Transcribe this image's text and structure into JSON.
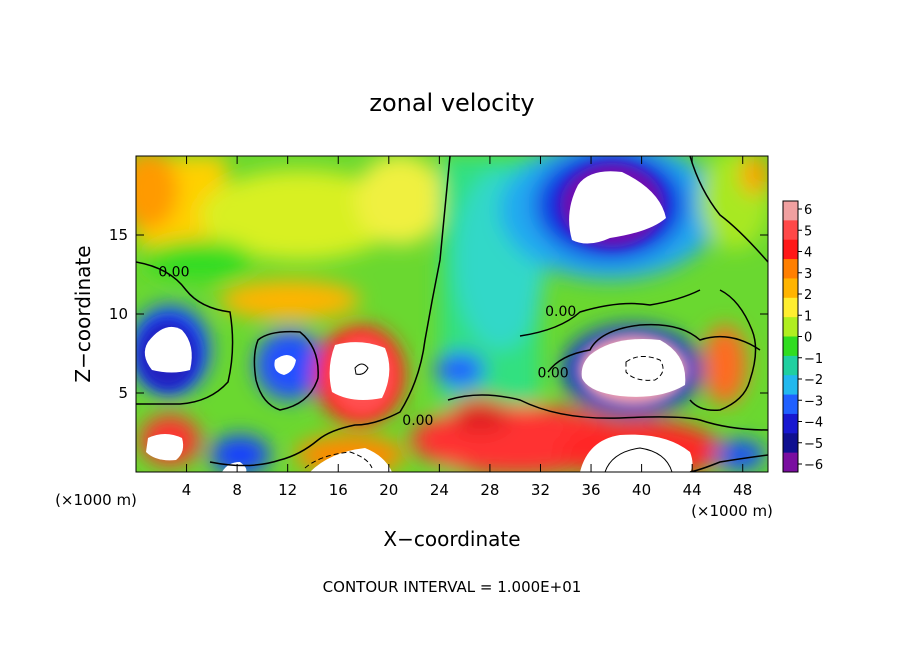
{
  "chart_data": {
    "type": "heatmap",
    "title": "zonal velocity",
    "xlabel": "X−coordinate",
    "ylabel": "Z−coordinate",
    "x_unit_left": "(×1000 m)",
    "x_unit_right": "(×1000 m)",
    "footer": "CONTOUR INTERVAL = 1.000E+01",
    "xlim": [
      0,
      50
    ],
    "ylim": [
      0,
      20
    ],
    "x_ticks": [
      4,
      8,
      12,
      16,
      20,
      24,
      28,
      32,
      36,
      40,
      44,
      48
    ],
    "y_ticks": [
      5,
      10,
      15
    ],
    "colorbar": {
      "ticks": [
        6,
        5,
        4,
        3,
        2,
        1,
        0,
        -1,
        -2,
        -3,
        -4,
        -5,
        -6
      ],
      "tick_labels": [
        "6",
        "5",
        "4",
        "3",
        "2",
        "1",
        "0",
        "−1",
        "−2",
        "−3",
        "−4",
        "−5",
        "−6"
      ],
      "colors": [
        "#f0a0a0",
        "#ff4848",
        "#ff1818",
        "#ff7f00",
        "#ffb400",
        "#ffee30",
        "#b0ee20",
        "#30dd20",
        "#20cfa0",
        "#22b8ee",
        "#2060ff",
        "#1818d0",
        "#101090",
        "#7a0ea0"
      ]
    },
    "contour_labels": [
      {
        "text": "0.00",
        "x": 3,
        "y": 12.7
      },
      {
        "text": "0.00",
        "x": 22.3,
        "y": 3.3
      },
      {
        "text": "0.00",
        "x": 33.6,
        "y": 10.2
      },
      {
        "text": "0.00",
        "x": 33,
        "y": 6.3
      }
    ]
  }
}
